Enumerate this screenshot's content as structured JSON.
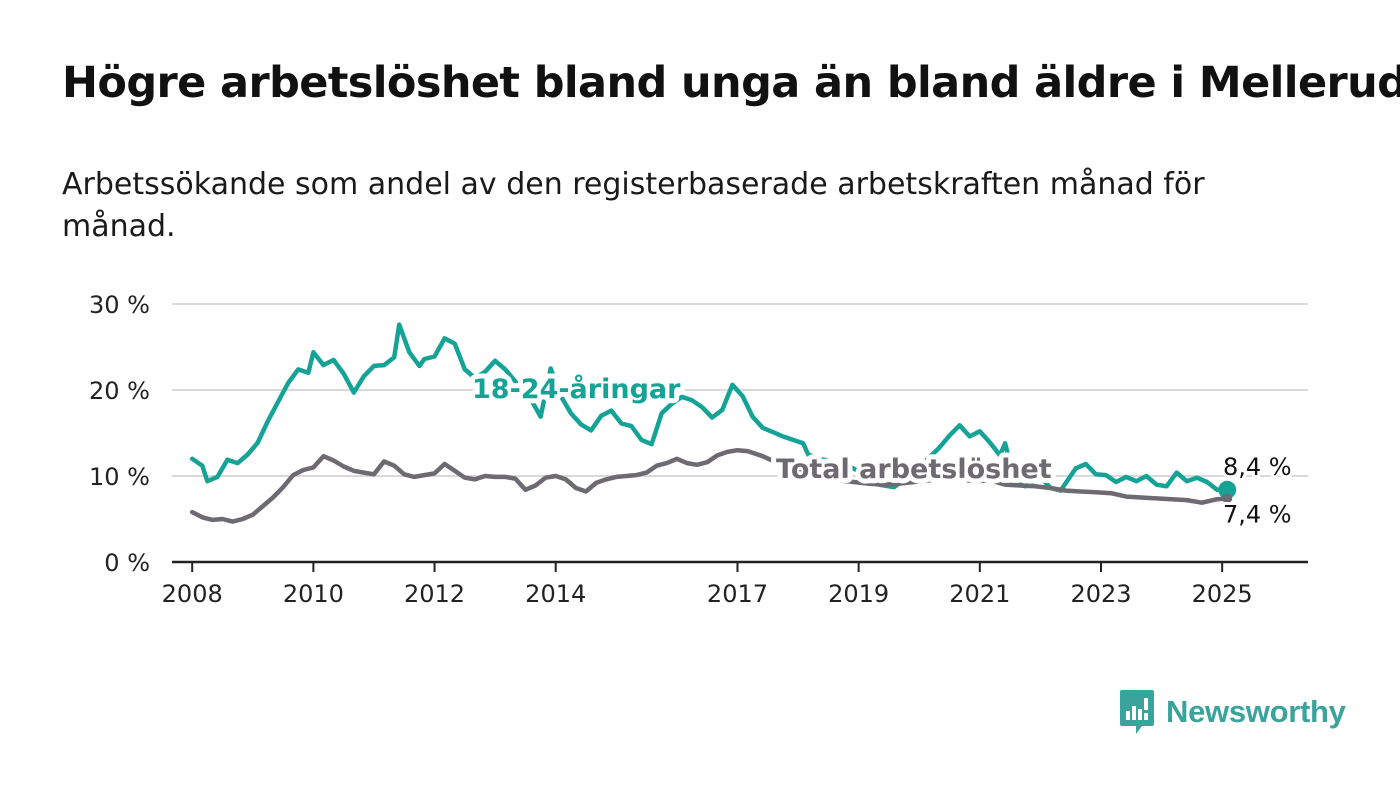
{
  "title": "Högre arbetslöshet bland unga än bland äldre i Mellerud",
  "subtitle": "Arbetssökande som andel av den registerbaserade arbetskraften månad för månad.",
  "brand": "Newsworthy",
  "colors": {
    "youth": "#14a396",
    "total": "#6d6a72",
    "grid": "#d9d9d9",
    "axis": "#222222",
    "brand": "#3aa39c"
  },
  "chart_data": {
    "type": "line",
    "title": "Högre arbetslöshet bland unga än bland äldre i Mellerud",
    "subtitle": "Arbetssökande som andel av den registerbaserade arbetskraften månad för månad.",
    "xlabel": "",
    "ylabel": "",
    "x_range": [
      "2007-09",
      "2026-06"
    ],
    "ylim": [
      0,
      30
    ],
    "y_ticks": [
      0,
      10,
      20,
      30
    ],
    "y_tick_labels": [
      "0 %",
      "10 %",
      "20 %",
      "30 %"
    ],
    "x_ticks": [
      "2008",
      "2010",
      "2012",
      "2014",
      "2017",
      "2019",
      "2021",
      "2023",
      "2025"
    ],
    "grid": true,
    "legend": "inline labels on lines",
    "series": [
      {
        "name": "18-24-åringar",
        "values": [
          [
            "2008-01",
            12.0
          ],
          [
            "2008-03",
            11.2
          ],
          [
            "2008-04",
            9.4
          ],
          [
            "2008-06",
            9.9
          ],
          [
            "2008-08",
            11.9
          ],
          [
            "2008-10",
            11.5
          ],
          [
            "2008-12",
            12.5
          ],
          [
            "2009-02",
            13.9
          ],
          [
            "2009-04",
            16.4
          ],
          [
            "2009-06",
            18.6
          ],
          [
            "2009-08",
            20.8
          ],
          [
            "2009-10",
            22.4
          ],
          [
            "2009-12",
            22.0
          ],
          [
            "2010-01",
            24.4
          ],
          [
            "2010-03",
            22.9
          ],
          [
            "2010-05",
            23.5
          ],
          [
            "2010-07",
            21.9
          ],
          [
            "2010-09",
            19.7
          ],
          [
            "2010-11",
            21.6
          ],
          [
            "2011-01",
            22.8
          ],
          [
            "2011-03",
            22.9
          ],
          [
            "2011-05",
            23.8
          ],
          [
            "2011-06",
            27.6
          ],
          [
            "2011-08",
            24.4
          ],
          [
            "2011-10",
            22.8
          ],
          [
            "2011-11",
            23.6
          ],
          [
            "2012-01",
            23.9
          ],
          [
            "2012-03",
            26.0
          ],
          [
            "2012-05",
            25.4
          ],
          [
            "2012-07",
            22.4
          ],
          [
            "2012-09",
            21.4
          ],
          [
            "2012-11",
            22.1
          ],
          [
            "2013-01",
            23.4
          ],
          [
            "2013-03",
            22.4
          ],
          [
            "2013-05",
            21.0
          ],
          [
            "2013-08",
            19.0
          ],
          [
            "2013-10",
            16.9
          ],
          [
            "2013-12",
            22.5
          ],
          [
            "2014-02",
            19.3
          ],
          [
            "2014-04",
            17.3
          ],
          [
            "2014-06",
            16.0
          ],
          [
            "2014-08",
            15.3
          ],
          [
            "2014-10",
            17.0
          ],
          [
            "2014-12",
            17.6
          ],
          [
            "2015-02",
            16.1
          ],
          [
            "2015-04",
            15.8
          ],
          [
            "2015-06",
            14.2
          ],
          [
            "2015-08",
            13.7
          ],
          [
            "2015-10",
            17.3
          ],
          [
            "2015-12",
            18.4
          ],
          [
            "2016-02",
            19.2
          ],
          [
            "2016-04",
            18.8
          ],
          [
            "2016-06",
            18.0
          ],
          [
            "2016-08",
            16.8
          ],
          [
            "2016-10",
            17.7
          ],
          [
            "2016-12",
            20.6
          ],
          [
            "2017-02",
            19.3
          ],
          [
            "2017-04",
            16.9
          ],
          [
            "2017-06",
            15.6
          ],
          [
            "2017-08",
            15.1
          ],
          [
            "2017-10",
            14.6
          ],
          [
            "2017-12",
            14.2
          ],
          [
            "2018-02",
            13.8
          ],
          [
            "2018-03",
            12.5
          ],
          [
            "2018-05",
            12.0
          ],
          [
            "2018-08",
            11.7
          ],
          [
            "2018-11",
            11.2
          ],
          [
            "2019-02",
            10.2
          ],
          [
            "2019-05",
            9.0
          ],
          [
            "2019-08",
            8.7
          ],
          [
            "2019-11",
            10.0
          ],
          [
            "2020-02",
            11.6
          ],
          [
            "2020-05",
            13.3
          ],
          [
            "2020-07",
            14.7
          ],
          [
            "2020-09",
            15.9
          ],
          [
            "2020-11",
            14.6
          ],
          [
            "2021-01",
            15.2
          ],
          [
            "2021-03",
            13.9
          ],
          [
            "2021-05",
            12.4
          ],
          [
            "2021-06",
            13.8
          ],
          [
            "2021-08",
            9.2
          ],
          [
            "2021-10",
            8.8
          ],
          [
            "2022-01",
            9.9
          ],
          [
            "2022-03",
            8.6
          ],
          [
            "2022-05",
            8.3
          ],
          [
            "2022-08",
            10.9
          ],
          [
            "2022-10",
            11.4
          ],
          [
            "2022-12",
            10.2
          ],
          [
            "2023-02",
            10.1
          ],
          [
            "2023-04",
            9.3
          ],
          [
            "2023-06",
            9.9
          ],
          [
            "2023-08",
            9.4
          ],
          [
            "2023-10",
            10.0
          ],
          [
            "2023-12",
            9.0
          ],
          [
            "2024-02",
            8.8
          ],
          [
            "2024-04",
            10.4
          ],
          [
            "2024-06",
            9.4
          ],
          [
            "2024-08",
            9.8
          ],
          [
            "2024-10",
            9.3
          ],
          [
            "2024-12",
            8.4
          ],
          [
            "2025-02",
            8.4
          ]
        ],
        "end_label": "8,4 %"
      },
      {
        "name": "Total arbetslöshet",
        "values": [
          [
            "2008-01",
            5.8
          ],
          [
            "2008-03",
            5.2
          ],
          [
            "2008-05",
            4.9
          ],
          [
            "2008-07",
            5.0
          ],
          [
            "2008-09",
            4.7
          ],
          [
            "2008-11",
            5.0
          ],
          [
            "2009-01",
            5.5
          ],
          [
            "2009-03",
            6.5
          ],
          [
            "2009-05",
            7.5
          ],
          [
            "2009-07",
            8.7
          ],
          [
            "2009-09",
            10.1
          ],
          [
            "2009-11",
            10.7
          ],
          [
            "2010-01",
            11.0
          ],
          [
            "2010-03",
            12.3
          ],
          [
            "2010-05",
            11.8
          ],
          [
            "2010-07",
            11.1
          ],
          [
            "2010-09",
            10.6
          ],
          [
            "2010-11",
            10.4
          ],
          [
            "2011-01",
            10.2
          ],
          [
            "2011-03",
            11.7
          ],
          [
            "2011-05",
            11.2
          ],
          [
            "2011-07",
            10.2
          ],
          [
            "2011-09",
            9.9
          ],
          [
            "2011-11",
            10.1
          ],
          [
            "2012-01",
            10.3
          ],
          [
            "2012-03",
            11.4
          ],
          [
            "2012-05",
            10.6
          ],
          [
            "2012-07",
            9.8
          ],
          [
            "2012-09",
            9.6
          ],
          [
            "2012-11",
            10.0
          ],
          [
            "2013-01",
            9.9
          ],
          [
            "2013-03",
            9.9
          ],
          [
            "2013-05",
            9.7
          ],
          [
            "2013-07",
            8.4
          ],
          [
            "2013-09",
            8.9
          ],
          [
            "2013-11",
            9.8
          ],
          [
            "2014-01",
            10.0
          ],
          [
            "2014-03",
            9.6
          ],
          [
            "2014-05",
            8.6
          ],
          [
            "2014-07",
            8.2
          ],
          [
            "2014-09",
            9.2
          ],
          [
            "2014-11",
            9.6
          ],
          [
            "2015-01",
            9.9
          ],
          [
            "2015-03",
            10.0
          ],
          [
            "2015-05",
            10.1
          ],
          [
            "2015-07",
            10.4
          ],
          [
            "2015-09",
            11.2
          ],
          [
            "2015-11",
            11.5
          ],
          [
            "2016-01",
            12.0
          ],
          [
            "2016-03",
            11.5
          ],
          [
            "2016-05",
            11.3
          ],
          [
            "2016-07",
            11.6
          ],
          [
            "2016-09",
            12.4
          ],
          [
            "2016-11",
            12.8
          ],
          [
            "2017-01",
            13.0
          ],
          [
            "2017-03",
            12.9
          ],
          [
            "2017-06",
            12.3
          ],
          [
            "2017-09",
            11.5
          ],
          [
            "2017-12",
            10.8
          ],
          [
            "2018-03",
            10.3
          ],
          [
            "2018-06",
            9.8
          ],
          [
            "2018-09",
            9.5
          ],
          [
            "2018-12",
            9.3
          ],
          [
            "2019-03",
            9.1
          ],
          [
            "2019-06",
            9.0
          ],
          [
            "2019-09",
            9.1
          ],
          [
            "2019-12",
            9.3
          ],
          [
            "2020-03",
            9.5
          ],
          [
            "2020-06",
            9.7
          ],
          [
            "2020-09",
            9.6
          ],
          [
            "2020-12",
            9.4
          ],
          [
            "2021-03",
            9.5
          ],
          [
            "2021-06",
            9.0
          ],
          [
            "2021-09",
            8.9
          ],
          [
            "2021-12",
            8.8
          ],
          [
            "2022-03",
            8.6
          ],
          [
            "2022-06",
            8.3
          ],
          [
            "2022-09",
            8.2
          ],
          [
            "2022-12",
            8.1
          ],
          [
            "2023-03",
            8.0
          ],
          [
            "2023-06",
            7.6
          ],
          [
            "2023-09",
            7.5
          ],
          [
            "2023-12",
            7.4
          ],
          [
            "2024-03",
            7.3
          ],
          [
            "2024-06",
            7.2
          ],
          [
            "2024-09",
            6.9
          ],
          [
            "2024-12",
            7.3
          ],
          [
            "2025-02",
            7.4
          ]
        ],
        "end_label": "7,4 %"
      }
    ]
  }
}
